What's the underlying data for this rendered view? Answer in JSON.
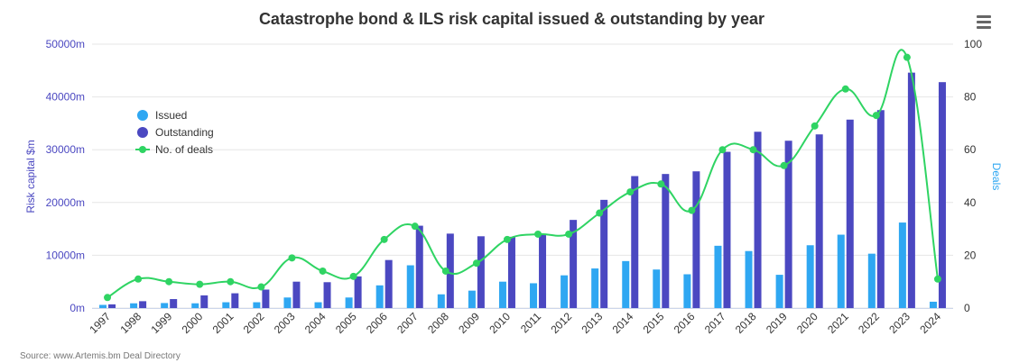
{
  "menu_icon": "hamburger-menu-icon",
  "colors": {
    "issued": "#2fa7f2",
    "outstanding": "#4b48c1",
    "deals": "#2fd463",
    "left_axis": "#4b48c1",
    "right_axis": "#2fa7f2",
    "title": "#333333",
    "grid": "#e6e6e6",
    "source": "#777777"
  },
  "chart_data": {
    "type": "bar",
    "title": "Catastrophe bond & ILS risk capital issued & outstanding by year",
    "source": "Source: www.Artemis.bm Deal Directory",
    "categories": [
      "1997",
      "1998",
      "1999",
      "2000",
      "2001",
      "2002",
      "2003",
      "2004",
      "2005",
      "2006",
      "2007",
      "2008",
      "2009",
      "2010",
      "2011",
      "2012",
      "2013",
      "2014",
      "2015",
      "2016",
      "2017",
      "2018",
      "2019",
      "2020",
      "2021",
      "2022",
      "2023",
      "2024"
    ],
    "series": [
      {
        "name": "Issued",
        "kind": "bar",
        "axis": "left",
        "values": [
          600,
          900,
          950,
          900,
          1100,
          1100,
          2000,
          1100,
          2000,
          4300,
          8100,
          2600,
          3300,
          5000,
          4700,
          6200,
          7500,
          8900,
          7300,
          6400,
          11800,
          10800,
          6300,
          11900,
          13900,
          10300,
          16200,
          1200
        ]
      },
      {
        "name": "Outstanding",
        "kind": "bar",
        "axis": "left",
        "values": [
          700,
          1300,
          1700,
          2400,
          2800,
          3500,
          5000,
          4900,
          6000,
          9100,
          15600,
          14100,
          13600,
          13500,
          13900,
          16700,
          20500,
          25000,
          25400,
          25900,
          29600,
          33400,
          31700,
          32900,
          35700,
          37500,
          44600,
          42800
        ]
      },
      {
        "name": "No. of deals",
        "kind": "line",
        "axis": "right",
        "values": [
          4,
          11,
          10,
          9,
          10,
          8,
          19,
          14,
          12,
          26,
          31,
          14,
          17,
          26,
          28,
          28,
          36,
          44,
          47,
          37,
          60,
          60,
          54,
          69,
          83,
          73,
          95,
          11
        ]
      }
    ],
    "ylabel": "Risk capital $m",
    "y2label": "Deals",
    "ylim": [
      0,
      50000
    ],
    "y2lim": [
      0,
      100
    ],
    "yticks": [
      "0m",
      "10000m",
      "20000m",
      "30000m",
      "40000m",
      "50000m"
    ],
    "y2ticks": [
      "0",
      "20",
      "40",
      "60",
      "80",
      "100"
    ],
    "grid": true,
    "legend_placement": "top-left"
  }
}
